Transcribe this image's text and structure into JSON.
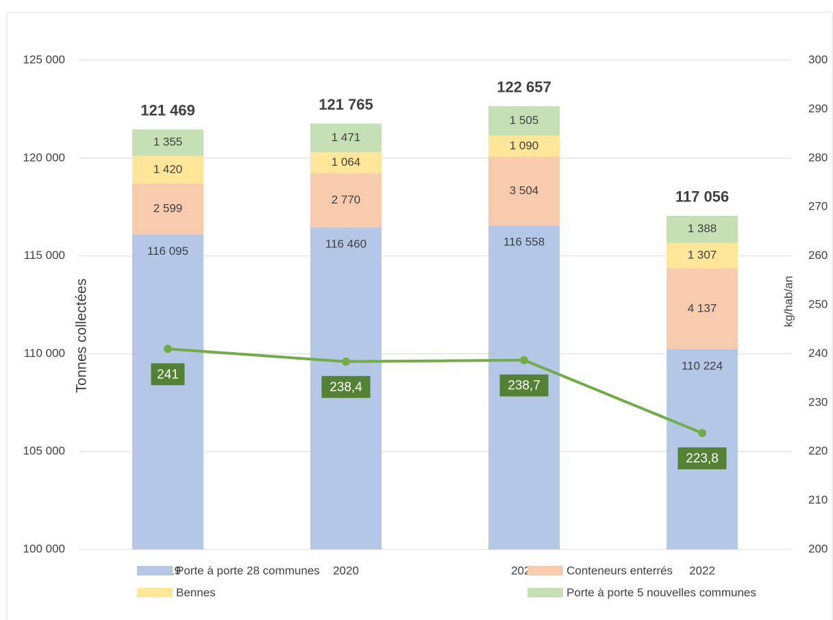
{
  "chart_data": {
    "type": "stacked-bar-line",
    "ylabel": "Tonnes collectées",
    "y2label": "kg/hab/an",
    "categories": [
      "2019",
      "2020",
      "2021",
      "2022"
    ],
    "series": [
      {
        "name": "Porte à porte 28 communes",
        "color": "#b4c7e7",
        "values": [
          116095,
          116460,
          116558,
          110224
        ],
        "value_labels": [
          "116 095",
          "116 460",
          "116 558",
          "110 224"
        ]
      },
      {
        "name": "Conteneurs enterrés",
        "color": "#f8cbad",
        "values": [
          2599,
          2770,
          3504,
          4137
        ],
        "value_labels": [
          "2 599",
          "2 770",
          "3 504",
          "4 137"
        ]
      },
      {
        "name": "Bennes",
        "color": "#ffe699",
        "values": [
          1420,
          1064,
          1090,
          1307
        ],
        "value_labels": [
          "1 420",
          "1 064",
          "1 090",
          "1 307"
        ]
      },
      {
        "name": "Porte à porte 5 nouvelles communes",
        "color": "#c5e0b4",
        "values": [
          1355,
          1471,
          1505,
          1388
        ],
        "value_labels": [
          "1 355",
          "1 471",
          "1 505",
          "1 388"
        ]
      },
      {
        "type": "line",
        "axis": "y2",
        "color": "#70ad47",
        "label_color": "#548235",
        "values": [
          241,
          238.4,
          238.7,
          223.8
        ],
        "value_labels": [
          "241",
          "238,4",
          "238,7",
          "223,8"
        ]
      }
    ],
    "totals": [
      121469,
      121765,
      122657,
      117056
    ],
    "totals_labels": [
      "121 469",
      "121 765",
      "122 657",
      "117 056"
    ],
    "ylim": [
      100000,
      125000
    ],
    "yticks": [
      {
        "value": 100000,
        "label": "100 000"
      },
      {
        "value": 105000,
        "label": "105 000"
      },
      {
        "value": 110000,
        "label": "110 000"
      },
      {
        "value": 115000,
        "label": "115 000"
      },
      {
        "value": 120000,
        "label": "120 000"
      },
      {
        "value": 125000,
        "label": "125 000"
      }
    ],
    "y2lim": [
      200,
      300
    ],
    "y2ticks": [
      200,
      210,
      220,
      230,
      240,
      250,
      260,
      270,
      280,
      290,
      300
    ],
    "grid": true
  }
}
